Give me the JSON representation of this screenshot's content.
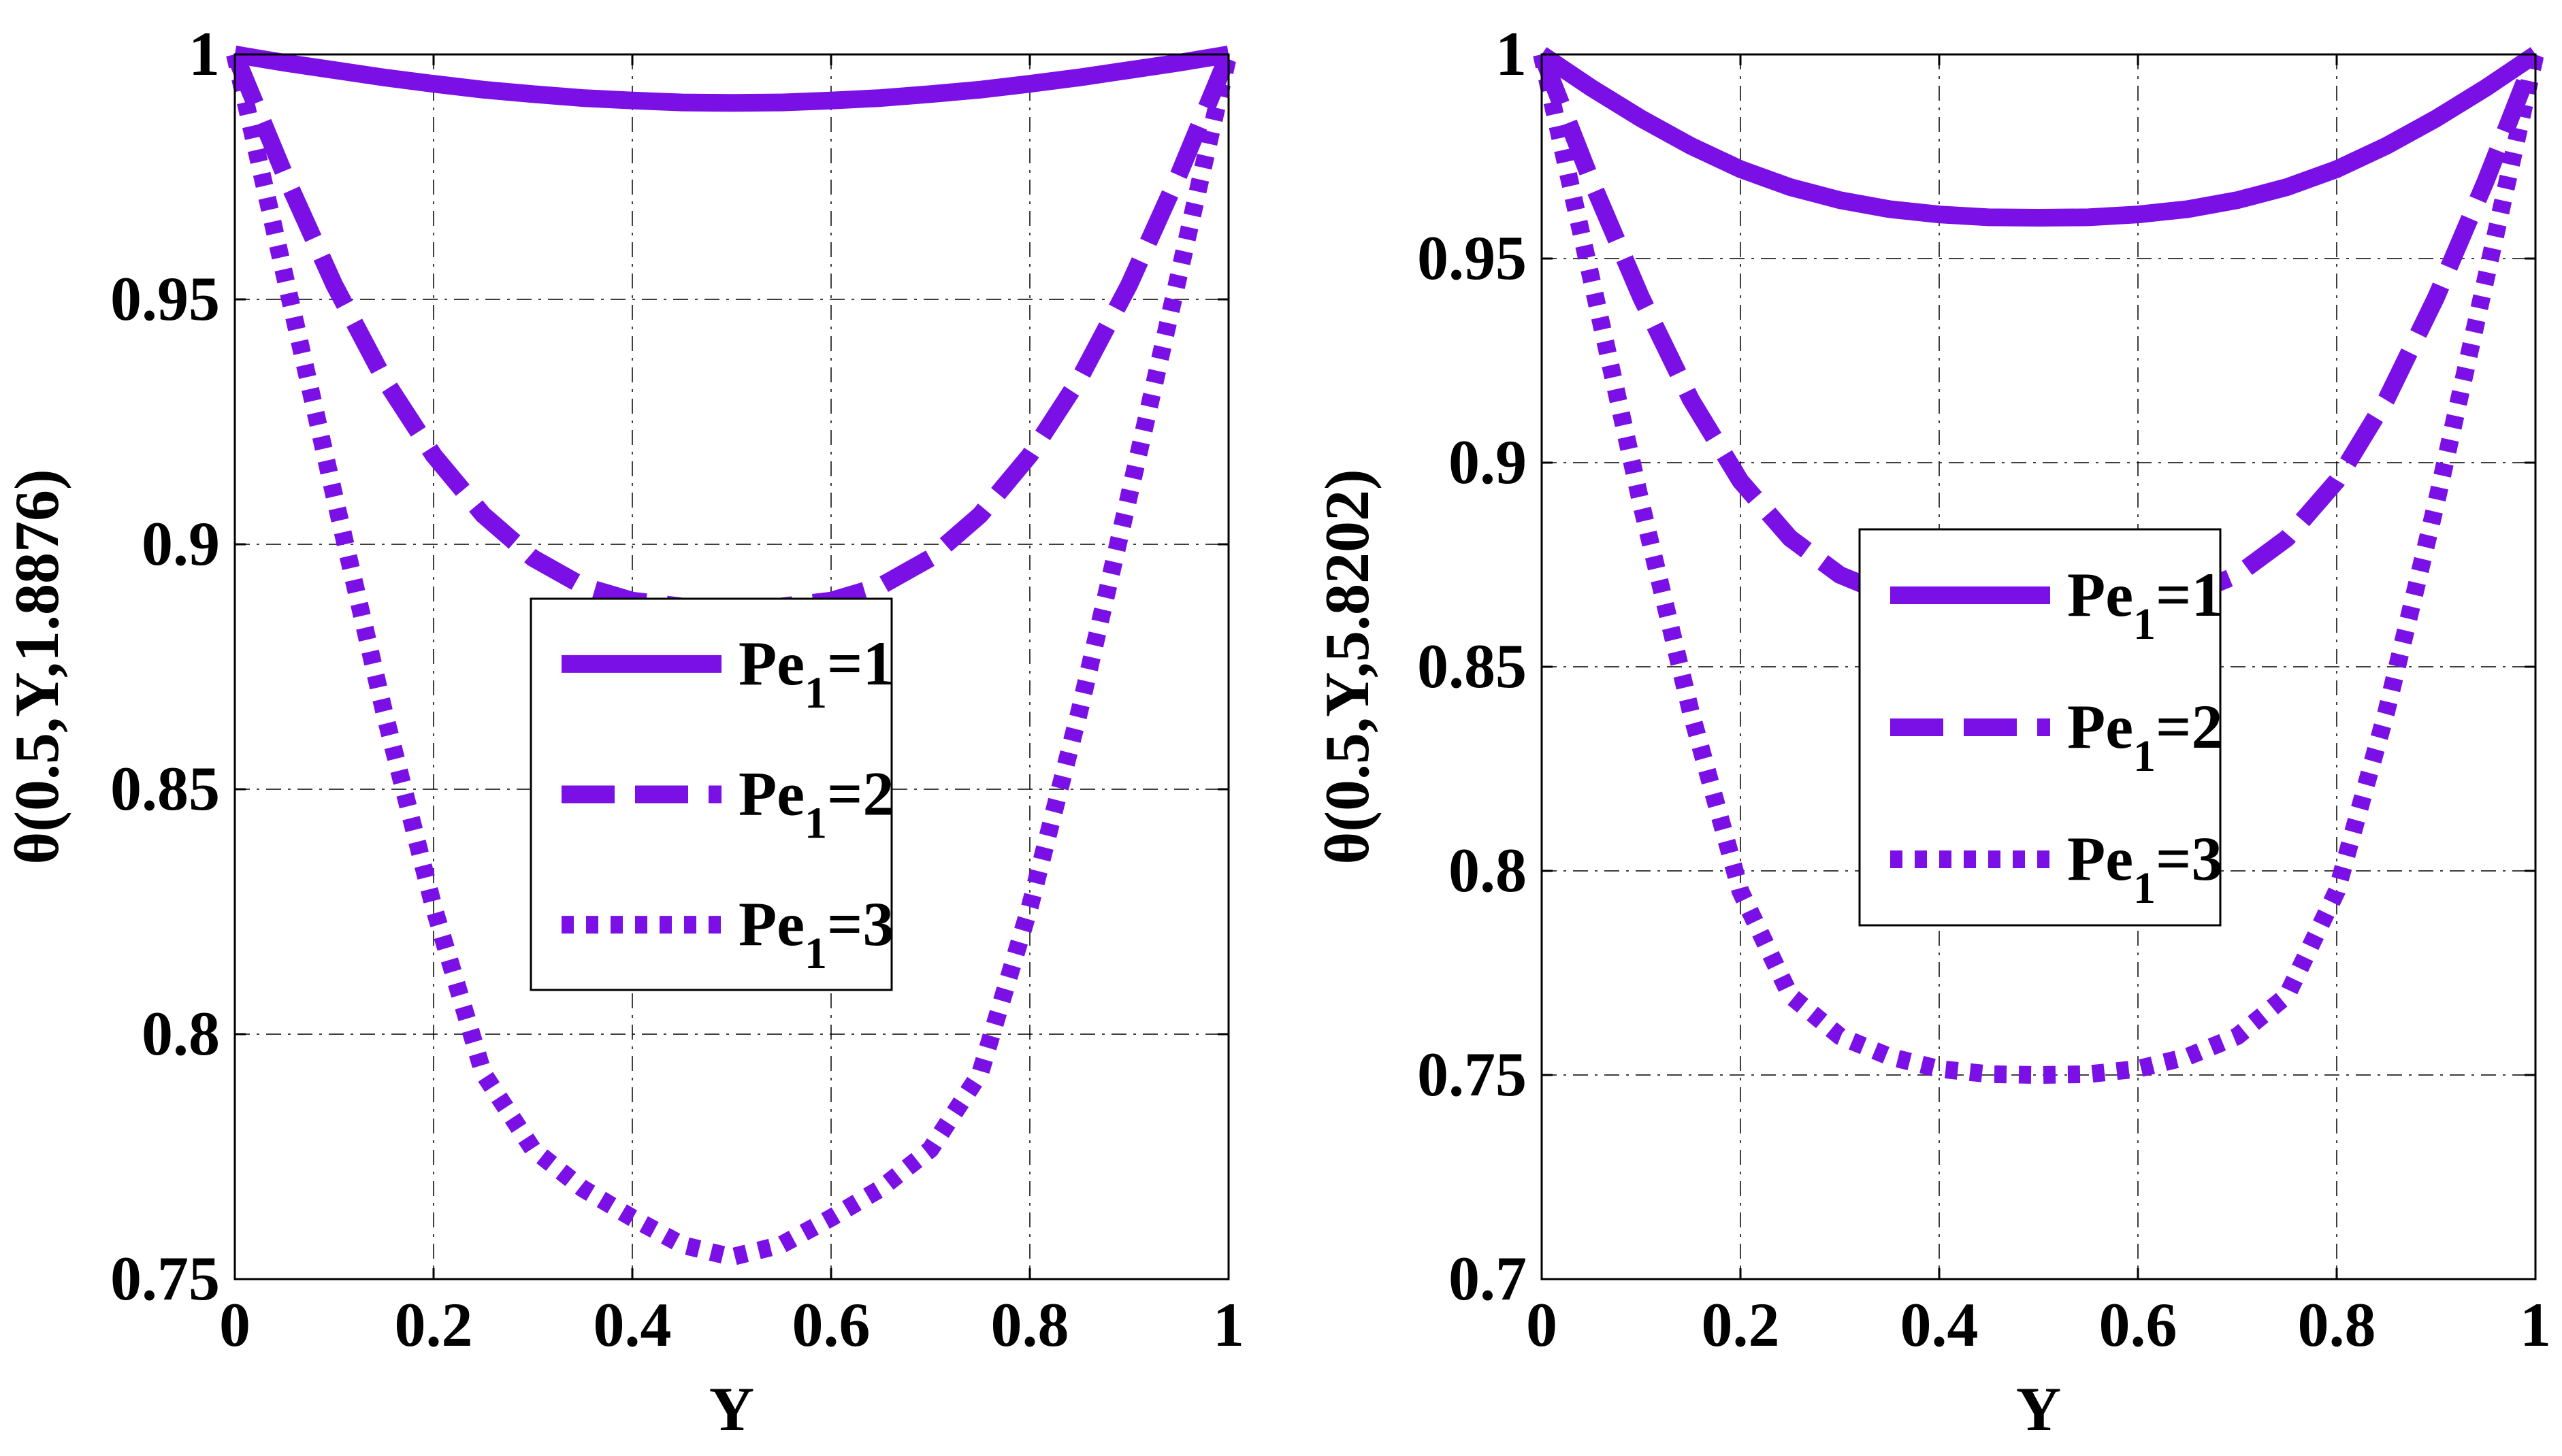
{
  "chart_data": [
    {
      "type": "line",
      "xlabel": "Y",
      "ylabel": "θ(0.5,Y,1.8876)",
      "xlim": [
        0,
        1
      ],
      "ylim": [
        0.75,
        1
      ],
      "xticks": [
        "0",
        "0.2",
        "0.4",
        "0.6",
        "0.8",
        "1"
      ],
      "yticks": [
        "0.75",
        "0.8",
        "0.85",
        "0.9",
        "0.95",
        "1"
      ],
      "grid": true,
      "legend_position": "center",
      "legend_base": "Pe",
      "legend_subscript": "1",
      "x": [
        0,
        0.05,
        0.1,
        0.15,
        0.2,
        0.25,
        0.3,
        0.35,
        0.4,
        0.45,
        0.5,
        0.55,
        0.6,
        0.65,
        0.7,
        0.75,
        0.8,
        0.85,
        0.9,
        0.95,
        1
      ],
      "series": [
        {
          "name": "Pe1=1",
          "legend_value": "=1",
          "style": "solid",
          "values": [
            1.0,
            0.9983,
            0.9968,
            0.9953,
            0.994,
            0.9928,
            0.9919,
            0.9911,
            0.9906,
            0.9902,
            0.9901,
            0.9902,
            0.9906,
            0.9911,
            0.9919,
            0.9928,
            0.994,
            0.9953,
            0.9968,
            0.9983,
            1.0
          ]
        },
        {
          "name": "Pe1=2",
          "legend_value": "=2",
          "style": "dashed",
          "values": [
            1.0,
            0.9755,
            0.953,
            0.9338,
            0.9182,
            0.906,
            0.8972,
            0.8915,
            0.8885,
            0.8873,
            0.8872,
            0.8873,
            0.8885,
            0.8915,
            0.8972,
            0.906,
            0.9182,
            0.9338,
            0.953,
            0.9755,
            1.0
          ]
        },
        {
          "name": "Pe1=3",
          "legend_value": "=3",
          "style": "dotted",
          "values": [
            1.0,
            0.955,
            0.91,
            0.866,
            0.826,
            0.792,
            0.7765,
            0.7685,
            0.7625,
            0.757,
            0.7545,
            0.757,
            0.7625,
            0.7685,
            0.7765,
            0.792,
            0.826,
            0.866,
            0.91,
            0.955,
            1.0
          ]
        }
      ],
      "color": "#7a10e6"
    },
    {
      "type": "line",
      "xlabel": "Y",
      "ylabel": "θ(0.5,Y,5.8202)",
      "xlim": [
        0,
        1
      ],
      "ylim": [
        0.7,
        1
      ],
      "xticks": [
        "0",
        "0.2",
        "0.4",
        "0.6",
        "0.8",
        "1"
      ],
      "yticks": [
        "0.7",
        "0.75",
        "0.8",
        "0.85",
        "0.9",
        "0.95",
        "1"
      ],
      "grid": true,
      "legend_position": "center",
      "legend_base": "Pe",
      "legend_subscript": "1",
      "x": [
        0,
        0.05,
        0.1,
        0.15,
        0.2,
        0.25,
        0.3,
        0.35,
        0.4,
        0.45,
        0.5,
        0.55,
        0.6,
        0.65,
        0.7,
        0.75,
        0.8,
        0.85,
        0.9,
        0.95,
        1
      ],
      "series": [
        {
          "name": "Pe1=1",
          "legend_value": "=1",
          "style": "solid",
          "values": [
            1.0,
            0.9918,
            0.9843,
            0.9776,
            0.9719,
            0.9675,
            0.9643,
            0.9621,
            0.9608,
            0.9601,
            0.96,
            0.9601,
            0.9608,
            0.9621,
            0.9643,
            0.9675,
            0.9719,
            0.9776,
            0.9843,
            0.9918,
            1.0
          ]
        },
        {
          "name": "Pe1=2",
          "legend_value": "=2",
          "style": "dashed",
          "values": [
            1.0,
            0.969,
            0.9405,
            0.9155,
            0.8955,
            0.8815,
            0.8725,
            0.8675,
            0.865,
            0.864,
            0.8638,
            0.864,
            0.865,
            0.8675,
            0.8725,
            0.8815,
            0.8955,
            0.9155,
            0.9405,
            0.969,
            1.0
          ]
        },
        {
          "name": "Pe1=3",
          "legend_value": "=3",
          "style": "dotted",
          "values": [
            1.0,
            0.945,
            0.89,
            0.839,
            0.795,
            0.7695,
            0.7595,
            0.7545,
            0.7515,
            0.7502,
            0.75,
            0.7502,
            0.7515,
            0.7545,
            0.7595,
            0.7695,
            0.795,
            0.839,
            0.89,
            0.945,
            1.0
          ]
        }
      ],
      "color": "#7a10e6"
    }
  ]
}
